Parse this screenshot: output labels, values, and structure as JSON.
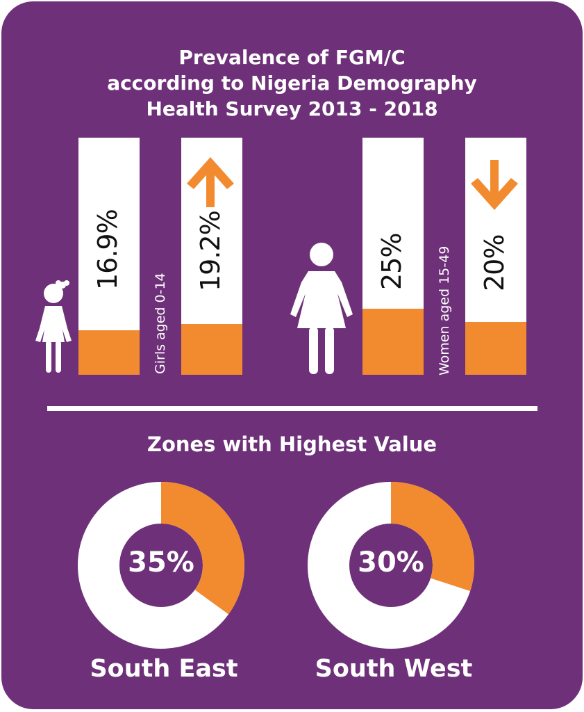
{
  "colors": {
    "background": "#6E3179",
    "accent": "#F28B30",
    "bar": "#FFFFFF"
  },
  "chart_data": [
    {
      "type": "bar",
      "title": "Prevalence of FGM/C according to Nigeria Demography Health Survey 2013 - 2018",
      "title_lines": [
        "Prevalence of FGM/C",
        "according to Nigeria Demography",
        "Health Survey 2013 - 2018"
      ],
      "groups": [
        {
          "label": "Girls aged 0-14",
          "icon": "girl-icon",
          "bars": [
            {
              "value": 16.9,
              "label": "16.9%"
            },
            {
              "value": 19.2,
              "label": "19.2%",
              "trend": "up",
              "trend_icon": "arrow-up-icon"
            }
          ]
        },
        {
          "label": "Women aged 15-49",
          "icon": "woman-icon",
          "bars": [
            {
              "value": 25,
              "label": "25%"
            },
            {
              "value": 20,
              "label": "20%",
              "trend": "down",
              "trend_icon": "arrow-down-icon"
            }
          ]
        }
      ],
      "ylim": [
        0,
        100
      ]
    },
    {
      "type": "pie",
      "title": "Zones with Highest Value",
      "slices": [
        {
          "name": "South East",
          "value": 35,
          "label": "35%"
        },
        {
          "name": "South West",
          "value": 30,
          "label": "30%"
        }
      ]
    }
  ]
}
